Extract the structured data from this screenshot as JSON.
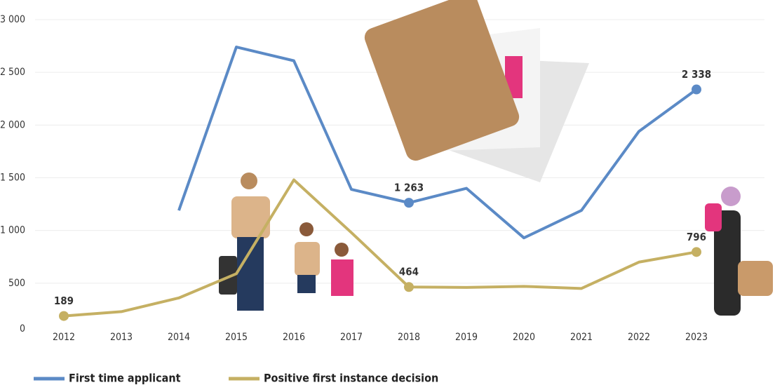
{
  "chart_data": {
    "type": "line",
    "categories": [
      "2012",
      "2013",
      "2014",
      "2015",
      "2016",
      "2017",
      "2018",
      "2019",
      "2020",
      "2021",
      "2022",
      "2023"
    ],
    "series": [
      {
        "name": "First time applicant",
        "color": "#5b8ac6",
        "label_color": "#2e5597",
        "values": [
          null,
          null,
          1190,
          2740,
          2610,
          1390,
          1263,
          1400,
          930,
          1190,
          1940,
          2338
        ],
        "value_labels": [
          null,
          null,
          null,
          null,
          null,
          null,
          "1 263",
          null,
          null,
          null,
          null,
          "2 338"
        ]
      },
      {
        "name": "Positive first instance decision",
        "color": "#c5b063",
        "label_color": "#c5b063",
        "values": [
          189,
          230,
          360,
          590,
          1480,
          980,
          464,
          460,
          470,
          450,
          700,
          796
        ],
        "value_labels": [
          "189",
          null,
          null,
          null,
          null,
          null,
          "464",
          null,
          null,
          null,
          null,
          "796"
        ]
      }
    ],
    "ylim": [
      0,
      3000
    ],
    "yticks": [
      0,
      500,
      {
        "value": 1000,
        "label": "1 000"
      },
      {
        "value": 1500,
        "label": "1 500"
      },
      {
        "value": 2000,
        "label": "2 000"
      },
      {
        "value": 2500,
        "label": "2 500"
      },
      {
        "value": 3000,
        "label": "3 000"
      }
    ],
    "grid": true
  }
}
